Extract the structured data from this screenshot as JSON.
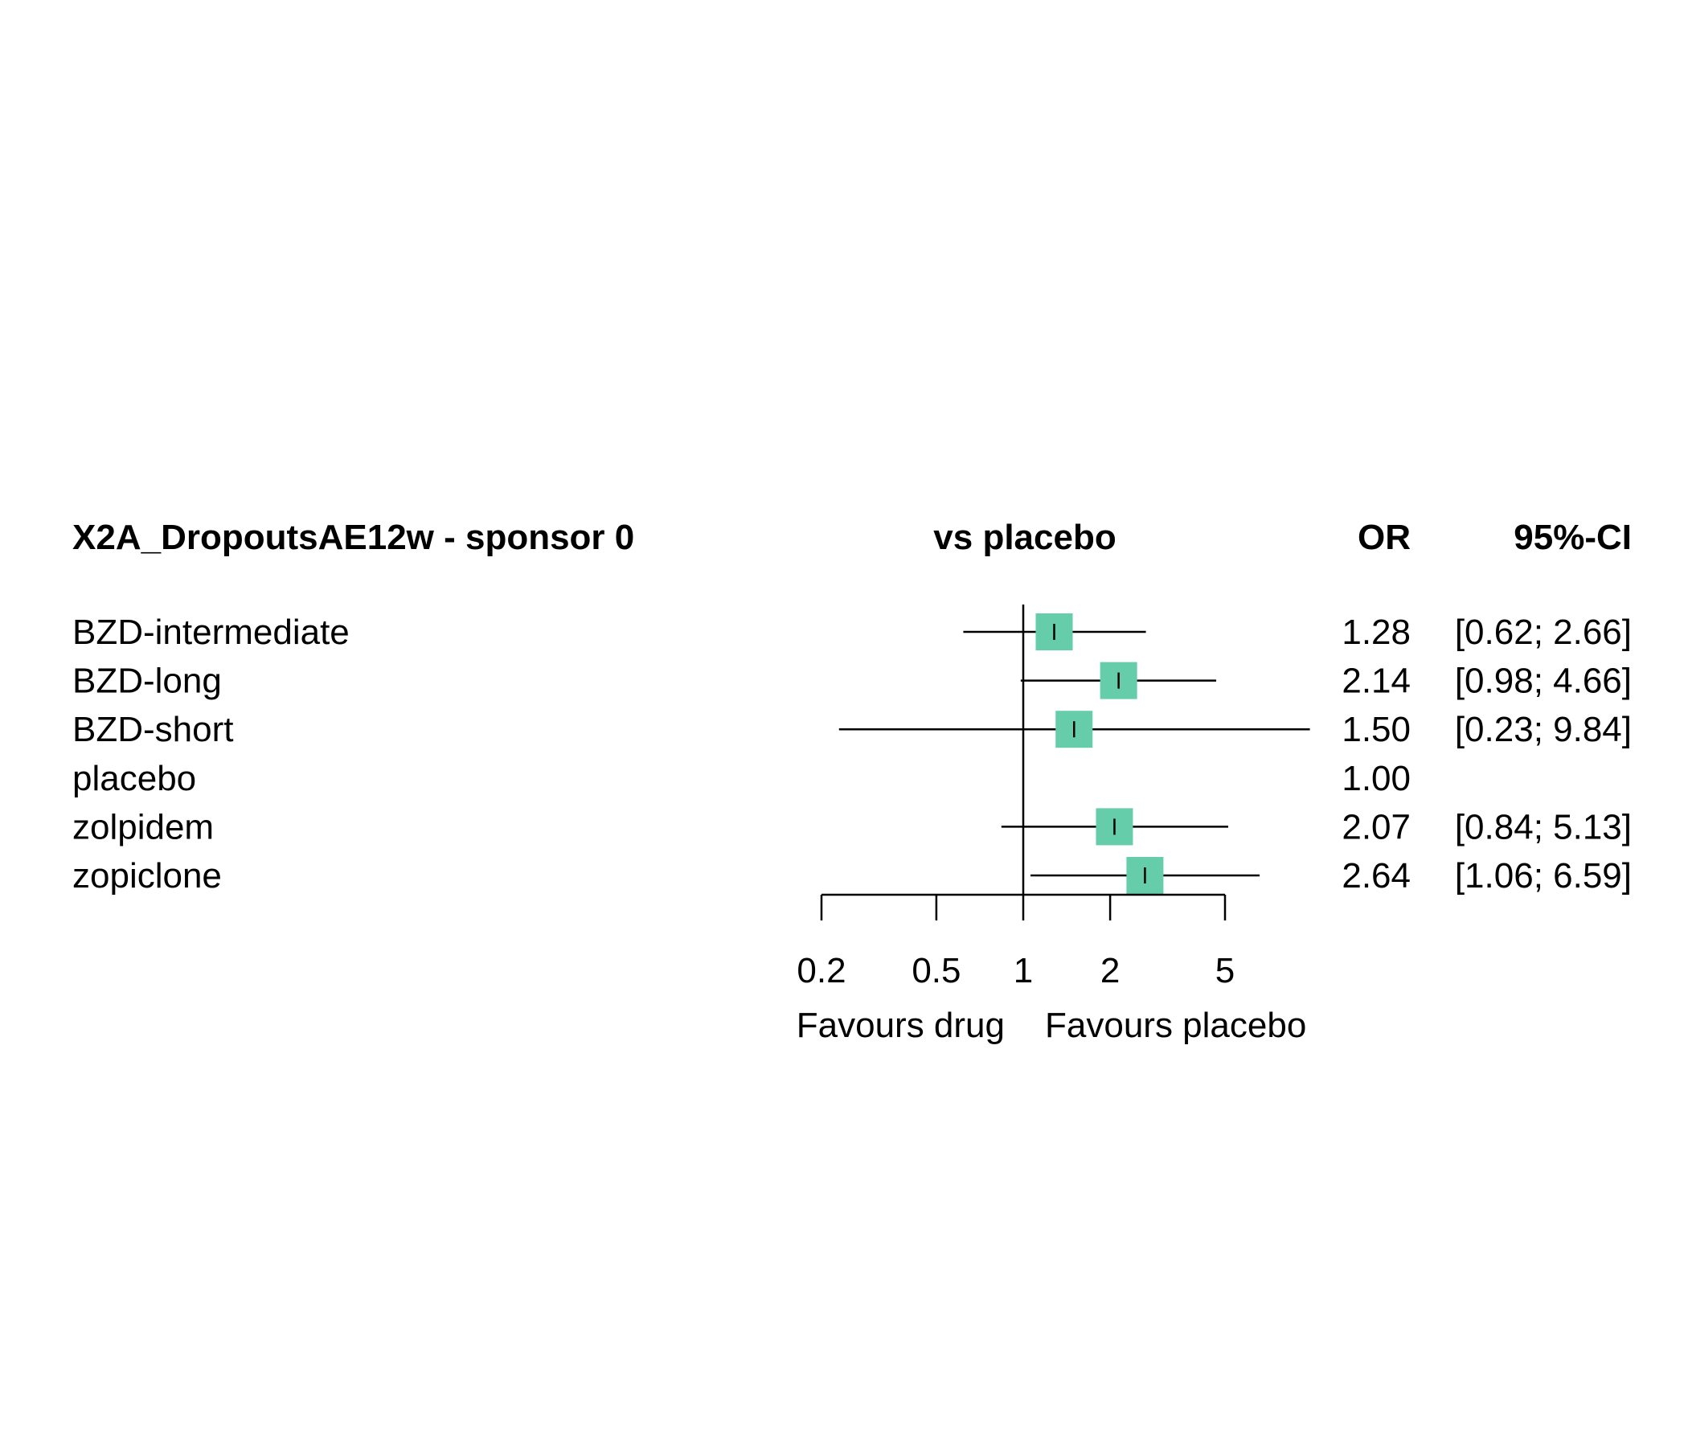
{
  "chart_data": {
    "type": "forest",
    "title": "X2A_DropoutsAE12w - sponsor 0",
    "comparison_label": "vs placebo",
    "col_or": "OR",
    "col_ci": "95%-CI",
    "scale": "log",
    "xlim": [
      0.2,
      5
    ],
    "ticks": [
      {
        "value": 0.2,
        "label": "0.2"
      },
      {
        "value": 0.5,
        "label": "0.5"
      },
      {
        "value": 1,
        "label": "1"
      },
      {
        "value": 2,
        "label": "2"
      },
      {
        "value": 5,
        "label": "5"
      }
    ],
    "reference_value": 1,
    "favours_left": "Favours drug",
    "favours_right": "Favours placebo",
    "marker_color": "#66CDAA",
    "rows": [
      {
        "label": "BZD-intermediate",
        "or": 1.28,
        "lo": 0.62,
        "hi": 2.66,
        "or_text": "1.28",
        "ci_text": "[0.62; 2.66]"
      },
      {
        "label": "BZD-long",
        "or": 2.14,
        "lo": 0.98,
        "hi": 4.66,
        "or_text": "2.14",
        "ci_text": "[0.98; 4.66]"
      },
      {
        "label": "BZD-short",
        "or": 1.5,
        "lo": 0.23,
        "hi": 9.84,
        "or_text": "1.50",
        "ci_text": "[0.23; 9.84]"
      },
      {
        "label": "placebo",
        "or": 1.0,
        "lo": null,
        "hi": null,
        "or_text": "1.00",
        "ci_text": ""
      },
      {
        "label": "zolpidem",
        "or": 2.07,
        "lo": 0.84,
        "hi": 5.13,
        "or_text": "2.07",
        "ci_text": "[0.84; 5.13]"
      },
      {
        "label": "zopiclone",
        "or": 2.64,
        "lo": 1.06,
        "hi": 6.59,
        "or_text": "2.64",
        "ci_text": "[1.06; 6.59]"
      }
    ]
  }
}
